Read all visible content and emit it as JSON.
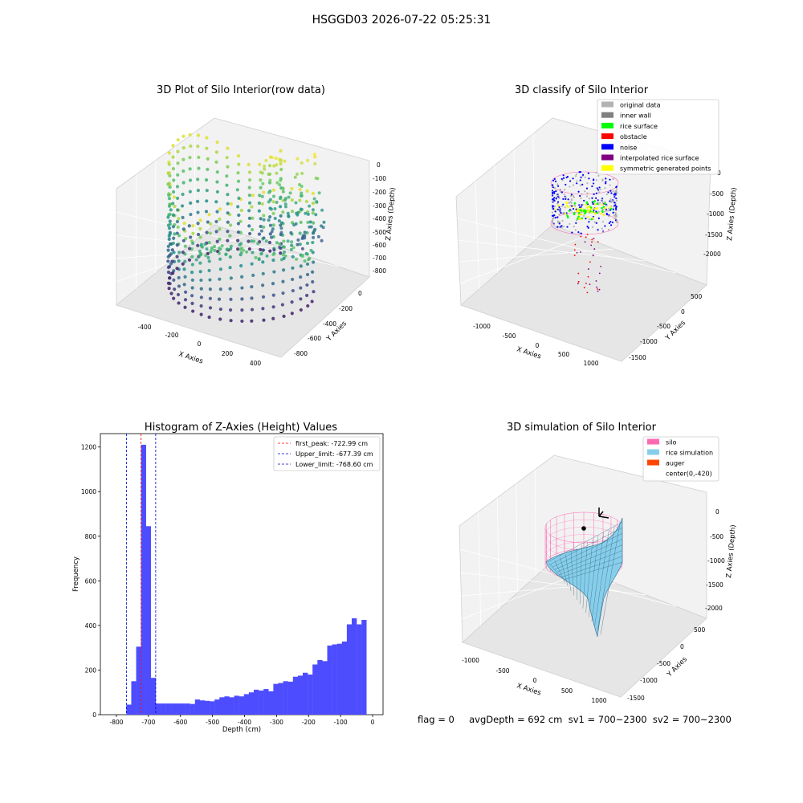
{
  "suptitle": "HSGGD03 2026-07-22 05:25:31",
  "footer": "flag = 0     avgDepth = 692 cm  sv1 = 700~2300  sv2 = 700~2300",
  "colors": {
    "hist_bar": "#4d4dff",
    "peak_line": "#ff0000",
    "limit_line": "#0000cc",
    "original": "#b3b3b3",
    "inner_wall": "#808080",
    "rice_surface": "#00ff00",
    "obstacle": "#ff0000",
    "noise": "#0000ff",
    "interp_rice": "#800080",
    "symmetric": "#ffff00",
    "silo": "#ff69b4",
    "rice_sim": "#87ceeb",
    "auger": "#ff4500"
  },
  "panels": {
    "raw": {
      "title": "3D Plot of Silo Interior(row data)",
      "xlabel": "X Axies",
      "ylabel": "Y Axies",
      "zlabel": "Z Axies (Depth)",
      "xticks": [
        "-400",
        "-200",
        "0",
        "200",
        "400"
      ],
      "yticks": [
        "0",
        "-200",
        "-400",
        "-600",
        "-800"
      ],
      "zticks": [
        "0",
        "-100",
        "-200",
        "-300",
        "-400",
        "-500",
        "-600",
        "-700",
        "-800"
      ],
      "colormap": "viridis"
    },
    "classify": {
      "title": "3D classify of Silo Interior",
      "xlabel": "X Axies",
      "ylabel": "Y Axies",
      "zlabel": "Z Axies (Depth)",
      "xticks": [
        "-1000",
        "-500",
        "0",
        "500",
        "1000"
      ],
      "yticks": [
        "500",
        "0",
        "-500",
        "-1000",
        "-1500"
      ],
      "zticks": [
        "0",
        "-500",
        "-1000",
        "-1500",
        "-2000"
      ],
      "legend": [
        {
          "label": "original data",
          "color": "#b3b3b3"
        },
        {
          "label": "inner wall",
          "color": "#808080"
        },
        {
          "label": "rice surface",
          "color": "#00ff00"
        },
        {
          "label": "obstacle",
          "color": "#ff0000"
        },
        {
          "label": "noise",
          "color": "#0000ff"
        },
        {
          "label": "interpolated rice surface",
          "color": "#800080"
        },
        {
          "label": "symmetric generated points",
          "color": "#ffff00"
        }
      ]
    },
    "simulation": {
      "title": "3D simulation of Silo Interior",
      "xlabel": "X Axies",
      "ylabel": "Y Axies",
      "zlabel": "Z Axies (Depth)",
      "xticks": [
        "-1000",
        "-500",
        "0",
        "500",
        "1000"
      ],
      "yticks": [
        "500",
        "0",
        "-500",
        "-1000",
        "-1500"
      ],
      "zticks": [
        "0",
        "-500",
        "-1000",
        "-1500",
        "-2000"
      ],
      "legend": [
        {
          "label": "silo",
          "color": "#ff69b4"
        },
        {
          "label": "rice simulation",
          "color": "#87ceeb"
        },
        {
          "label": "auger",
          "color": "#ff4500"
        },
        {
          "label": "center(0,-420)",
          "color": "none"
        }
      ]
    }
  },
  "chart_data": [
    {
      "type": "bar",
      "title": "Histogram of Z-Axies (Height) Values",
      "xlabel": "Depth (cm)",
      "ylabel": "Frequency",
      "xlim": [
        -800,
        0
      ],
      "ylim": [
        0,
        1260
      ],
      "xticks": [
        -800,
        -700,
        -600,
        -500,
        -400,
        -300,
        -200,
        -100,
        0
      ],
      "yticks": [
        0,
        200,
        400,
        600,
        800,
        1000,
        1200
      ],
      "bin_start": -769,
      "bin_width": 15.3,
      "values": [
        45,
        150,
        305,
        1210,
        845,
        165,
        50,
        50,
        50,
        50,
        50,
        50,
        50,
        48,
        68,
        64,
        62,
        60,
        68,
        78,
        82,
        78,
        85,
        82,
        92,
        100,
        112,
        108,
        115,
        105,
        138,
        142,
        150,
        148,
        170,
        175,
        188,
        180,
        225,
        245,
        240,
        310,
        315,
        318,
        328,
        405,
        432,
        405,
        425
      ],
      "vlines": [
        {
          "x": -722.99,
          "label": "first_peak: -722.99 cm",
          "color": "#ff0000"
        },
        {
          "x": -677.39,
          "label": "Upper_limit: -677.39 cm",
          "color": "#0000cc"
        },
        {
          "x": -768.6,
          "label": "Lower_limit: -768.60 cm",
          "color": "#0000cc"
        }
      ],
      "legend_position": "top-right",
      "grid": false
    }
  ]
}
